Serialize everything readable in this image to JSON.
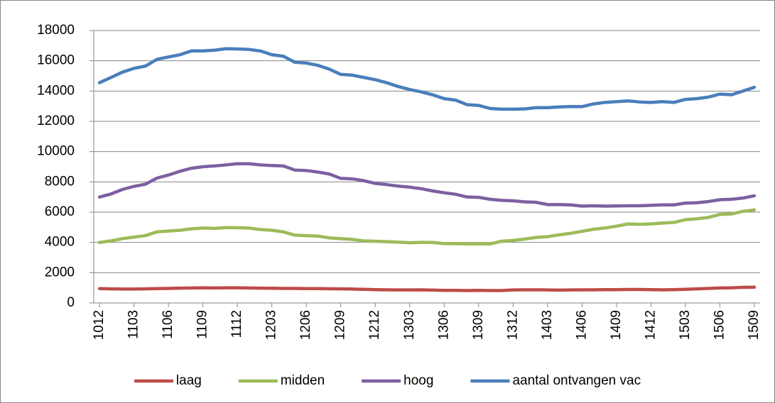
{
  "chart_data": {
    "type": "line",
    "categories": [
      "1012",
      null,
      null,
      "1103",
      null,
      null,
      "1106",
      null,
      null,
      "1109",
      null,
      null,
      "1112",
      null,
      null,
      "1203",
      null,
      null,
      "1206",
      null,
      null,
      "1209",
      null,
      null,
      "1212",
      null,
      null,
      "1303",
      null,
      null,
      "1306",
      null,
      null,
      "1309",
      null,
      null,
      "1312",
      null,
      null,
      "1403",
      null,
      null,
      "1406",
      null,
      null,
      "1409",
      null,
      null,
      "1412",
      null,
      null,
      "1503",
      null,
      null,
      "1506",
      null,
      null,
      "1509"
    ],
    "series": [
      {
        "name": "laag",
        "color": "#be4b48",
        "values": [
          950,
          930,
          920,
          920,
          930,
          950,
          960,
          980,
          990,
          1000,
          990,
          1000,
          1000,
          990,
          980,
          970,
          960,
          960,
          950,
          950,
          940,
          930,
          920,
          900,
          880,
          870,
          860,
          860,
          870,
          850,
          830,
          830,
          820,
          830,
          820,
          820,
          860,
          870,
          870,
          860,
          850,
          860,
          870,
          870,
          880,
          880,
          890,
          890,
          880,
          870,
          880,
          900,
          930,
          960,
          990,
          1000,
          1030,
          1040
        ]
      },
      {
        "name": "midden",
        "color": "#9bbb59",
        "values": [
          4000,
          4100,
          4250,
          4350,
          4450,
          4700,
          4750,
          4800,
          4900,
          4950,
          4930,
          4980,
          4970,
          4950,
          4850,
          4800,
          4700,
          4480,
          4450,
          4420,
          4300,
          4250,
          4200,
          4100,
          4080,
          4050,
          4020,
          3980,
          4000,
          4000,
          3920,
          3920,
          3900,
          3900,
          3900,
          4080,
          4130,
          4220,
          4330,
          4380,
          4500,
          4600,
          4730,
          4870,
          4950,
          5070,
          5220,
          5200,
          5220,
          5280,
          5320,
          5500,
          5560,
          5650,
          5850,
          5880,
          6050,
          6150
        ]
      },
      {
        "name": "hoog",
        "color": "#7d60a0",
        "values": [
          7000,
          7200,
          7500,
          7700,
          7850,
          8250,
          8450,
          8700,
          8900,
          9000,
          9050,
          9120,
          9200,
          9200,
          9120,
          9080,
          9050,
          8780,
          8750,
          8650,
          8520,
          8230,
          8200,
          8080,
          7900,
          7820,
          7720,
          7650,
          7550,
          7400,
          7280,
          7180,
          7000,
          6980,
          6850,
          6780,
          6750,
          6680,
          6650,
          6500,
          6500,
          6480,
          6400,
          6420,
          6400,
          6410,
          6420,
          6420,
          6450,
          6480,
          6480,
          6600,
          6620,
          6700,
          6820,
          6850,
          6930,
          7080
        ]
      },
      {
        "name": "aantal ontvangen vac",
        "color": "#4a7ebb",
        "values": [
          14550,
          14900,
          15250,
          15500,
          15650,
          16100,
          16250,
          16400,
          16650,
          16650,
          16700,
          16800,
          16780,
          16750,
          16650,
          16400,
          16300,
          15900,
          15850,
          15700,
          15450,
          15100,
          15050,
          14900,
          14750,
          14550,
          14300,
          14100,
          13950,
          13750,
          13500,
          13400,
          13100,
          13050,
          12850,
          12800,
          12800,
          12820,
          12900,
          12900,
          12950,
          12980,
          12970,
          13150,
          13250,
          13300,
          13350,
          13280,
          13250,
          13300,
          13250,
          13450,
          13500,
          13600,
          13800,
          13750,
          14000,
          14250
        ]
      }
    ],
    "ylim": [
      0,
      18000
    ],
    "yticks": [
      0,
      2000,
      4000,
      6000,
      8000,
      10000,
      12000,
      14000,
      16000,
      18000
    ],
    "grid": true,
    "legend": "bottom"
  }
}
